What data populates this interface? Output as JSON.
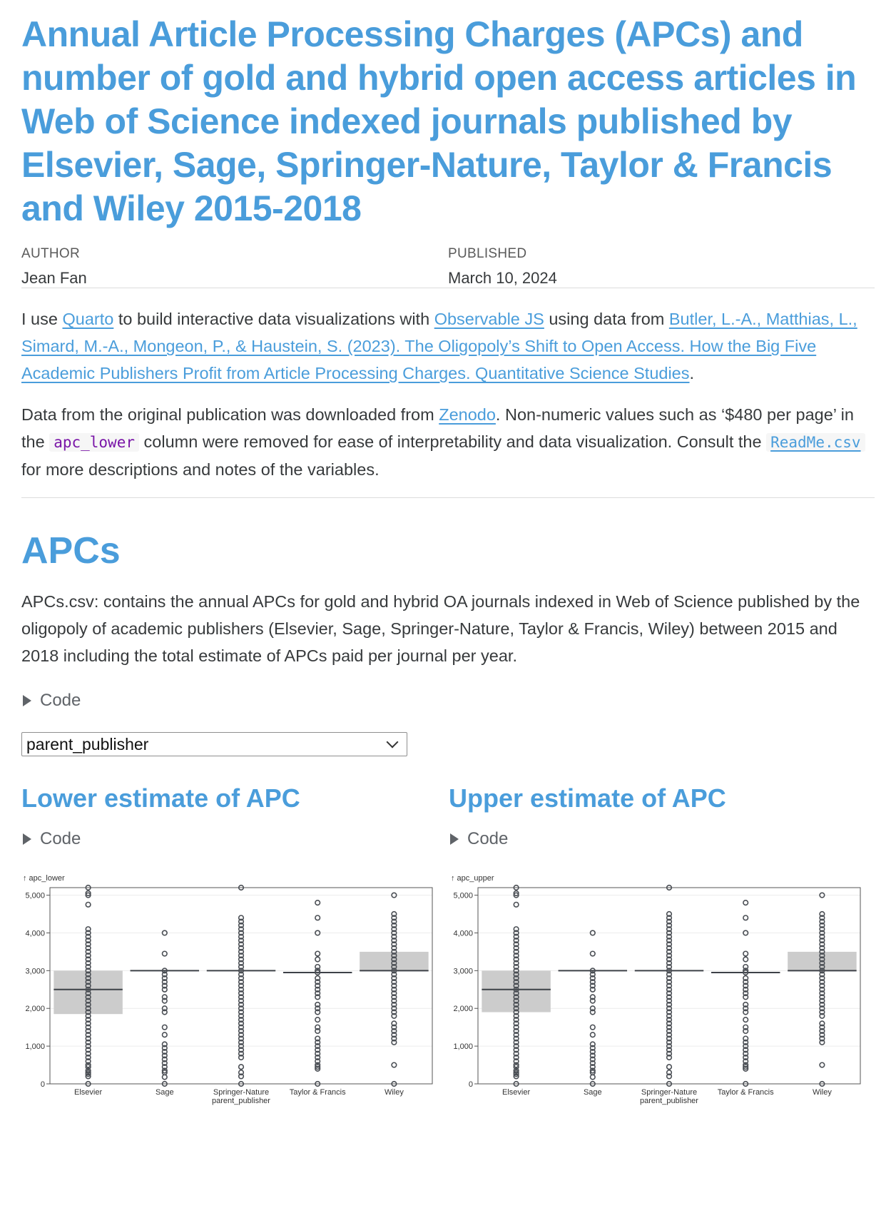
{
  "title": "Annual Article Processing Charges (APCs) and number of gold and hybrid open access articles in Web of Science indexed journals published by Elsevier, Sage, Springer-Nature, Taylor & Francis and Wiley 2015-2018",
  "meta": {
    "author_label": "AUTHOR",
    "author": "Jean Fan",
    "published_label": "PUBLISHED",
    "published": "March 10, 2024"
  },
  "intro": {
    "p1_a": "I use ",
    "link_quarto": "Quarto",
    "p1_b": " to build interactive data visualizations with ",
    "link_observable": "Observable JS",
    "p1_c": " using data from ",
    "link_citation": "Butler, L.-A., Matthias, L., Simard, M.-A., Mongeon, P., & Haustein, S. (2023). The Oligopoly’s Shift to Open Access. How the Big Five Academic Publishers Profit from Article Processing Charges. Quantitative Science Studies",
    "p1_d": ".",
    "p2_a": "Data from the original publication was downloaded from ",
    "link_zenodo": "Zenodo",
    "p2_b": ". Non-numeric values such as ‘$480 per page’ in the ",
    "code_apc_lower": "apc_lower",
    "p2_c": " column were removed for ease of interpretability and data visualization. Consult the ",
    "code_readme": "ReadMe.csv",
    "p2_d": " for more descriptions and notes of the variables."
  },
  "section": {
    "heading": "APCs",
    "description": "APCs.csv: contains the annual APCs for gold and hybrid OA journals indexed in Web of Science published by the oligopoly of academic publishers (Elsevier, Sage, Springer-Nature, Taylor & Francis, Wiley) between 2015 and 2018 including the total estimate of APCs paid per journal per year.",
    "code_label": "Code",
    "select_value": "parent_publisher"
  },
  "panels": {
    "lower_title": "Lower estimate of APC",
    "upper_title": "Upper estimate of APC",
    "code_label": "Code"
  },
  "colors": {
    "accent": "#4a9ddb",
    "box": "#cccccc",
    "points": "#4a4e54"
  },
  "chart_data": [
    {
      "type": "boxplot",
      "ylabel": "↑ apc_lower",
      "xlabel": "parent_publisher",
      "ylim": [
        0,
        5200
      ],
      "yticks": [
        0,
        1000,
        2000,
        3000,
        4000,
        5000
      ],
      "ytick_labels": [
        "0",
        "1,000",
        "2,000",
        "3,000",
        "4,000",
        "5,000"
      ],
      "grid": true,
      "categories": [
        "Elsevier",
        "Sage",
        "Springer-Nature",
        "Taylor & Francis",
        "Wiley"
      ],
      "boxes": [
        {
          "q1": 1850,
          "median": 2500,
          "q3": 3000
        },
        {
          "q1": 3000,
          "median": 3000,
          "q3": 3000
        },
        {
          "q1": 3000,
          "median": 3000,
          "q3": 3000
        },
        {
          "q1": 2950,
          "median": 2950,
          "q3": 2950
        },
        {
          "q1": 3000,
          "median": 3000,
          "q3": 3500
        }
      ],
      "points": [
        [
          0,
          200,
          260,
          300,
          350,
          450,
          500,
          600,
          700,
          800,
          900,
          1000,
          1100,
          1200,
          1300,
          1400,
          1500,
          1600,
          1700,
          1800,
          1900,
          2000,
          2100,
          2200,
          2300,
          2400,
          2500,
          2600,
          2700,
          2800,
          2900,
          3000,
          3100,
          3200,
          3300,
          3400,
          3500,
          3600,
          3700,
          3800,
          3900,
          4000,
          4100,
          4750,
          5000,
          5050,
          5200
        ],
        [
          0,
          180,
          300,
          350,
          450,
          550,
          650,
          750,
          850,
          950,
          1050,
          1300,
          1500,
          1900,
          2000,
          2200,
          2300,
          2500,
          2600,
          2700,
          2800,
          2900,
          3000,
          3450,
          4000
        ],
        [
          0,
          200,
          300,
          450,
          700,
          800,
          900,
          1000,
          1100,
          1200,
          1300,
          1400,
          1500,
          1600,
          1700,
          1800,
          1900,
          2000,
          2100,
          2200,
          2300,
          2400,
          2500,
          2600,
          2700,
          2800,
          2900,
          3000,
          3100,
          3200,
          3300,
          3400,
          3500,
          3600,
          3700,
          3800,
          3900,
          4000,
          4100,
          4200,
          4300,
          4400,
          5200
        ],
        [
          0,
          400,
          450,
          500,
          600,
          700,
          800,
          900,
          1000,
          1100,
          1200,
          1400,
          1500,
          1700,
          1900,
          2000,
          2100,
          2300,
          2400,
          2500,
          2600,
          2700,
          2800,
          2950,
          3000,
          3100,
          3300,
          3450,
          4000,
          4400,
          4800
        ],
        [
          0,
          500,
          1100,
          1200,
          1300,
          1400,
          1500,
          1600,
          1800,
          1900,
          2000,
          2100,
          2200,
          2300,
          2400,
          2500,
          2600,
          2700,
          2800,
          2900,
          3000,
          3100,
          3200,
          3300,
          3400,
          3500,
          3600,
          3700,
          3800,
          3900,
          4000,
          4100,
          4200,
          4300,
          4400,
          4500,
          5000
        ]
      ]
    },
    {
      "type": "boxplot",
      "ylabel": "↑ apc_upper",
      "xlabel": "parent_publisher",
      "ylim": [
        0,
        5200
      ],
      "yticks": [
        0,
        1000,
        2000,
        3000,
        4000,
        5000
      ],
      "ytick_labels": [
        "0",
        "1,000",
        "2,000",
        "3,000",
        "4,000",
        "5,000"
      ],
      "grid": true,
      "categories": [
        "Elsevier",
        "Sage",
        "Springer-Nature",
        "Taylor & Francis",
        "Wiley"
      ],
      "boxes": [
        {
          "q1": 1900,
          "median": 2500,
          "q3": 3000
        },
        {
          "q1": 3000,
          "median": 3000,
          "q3": 3000
        },
        {
          "q1": 3000,
          "median": 3000,
          "q3": 3000
        },
        {
          "q1": 2950,
          "median": 2950,
          "q3": 2950
        },
        {
          "q1": 3000,
          "median": 3000,
          "q3": 3500
        }
      ],
      "points": [
        [
          0,
          200,
          260,
          300,
          350,
          450,
          500,
          600,
          700,
          800,
          900,
          1000,
          1100,
          1200,
          1300,
          1400,
          1500,
          1600,
          1700,
          1800,
          1900,
          2000,
          2100,
          2200,
          2300,
          2400,
          2500,
          2600,
          2700,
          2800,
          2900,
          3000,
          3100,
          3200,
          3300,
          3400,
          3500,
          3600,
          3700,
          3800,
          3900,
          4000,
          4100,
          4750,
          5000,
          5050,
          5200
        ],
        [
          0,
          180,
          300,
          350,
          450,
          550,
          650,
          750,
          850,
          950,
          1050,
          1300,
          1500,
          1900,
          2000,
          2200,
          2300,
          2500,
          2600,
          2700,
          2800,
          2900,
          3000,
          3450,
          4000
        ],
        [
          0,
          200,
          300,
          450,
          700,
          800,
          900,
          1000,
          1100,
          1200,
          1300,
          1400,
          1500,
          1600,
          1700,
          1800,
          1900,
          2000,
          2100,
          2200,
          2300,
          2400,
          2500,
          2600,
          2700,
          2800,
          2900,
          3000,
          3100,
          3200,
          3300,
          3400,
          3500,
          3600,
          3700,
          3800,
          3900,
          4000,
          4100,
          4200,
          4300,
          4400,
          4500,
          5200
        ],
        [
          0,
          400,
          450,
          500,
          600,
          700,
          800,
          900,
          1000,
          1100,
          1200,
          1400,
          1500,
          1700,
          1900,
          2000,
          2100,
          2300,
          2400,
          2500,
          2600,
          2700,
          2800,
          2950,
          3000,
          3100,
          3300,
          3450,
          4000,
          4400,
          4800
        ],
        [
          0,
          500,
          1100,
          1200,
          1300,
          1400,
          1500,
          1600,
          1800,
          1900,
          2000,
          2100,
          2200,
          2300,
          2400,
          2500,
          2600,
          2700,
          2800,
          2900,
          3000,
          3100,
          3200,
          3300,
          3400,
          3500,
          3600,
          3700,
          3800,
          3900,
          4000,
          4100,
          4200,
          4300,
          4400,
          4500,
          5000
        ]
      ]
    }
  ]
}
